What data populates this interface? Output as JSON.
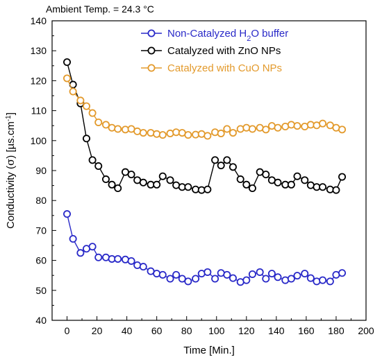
{
  "annotation": "Ambient Temp. = 24.3 °C",
  "chart_data": {
    "type": "line",
    "xlabel": "Time [Min.]",
    "ylabel_parts": {
      "pre": "Conductivity (",
      "sym": "σ",
      "mid": ") [µs.cm",
      "sup": "-1",
      "post": "]"
    },
    "xlim": [
      -10,
      200
    ],
    "ylim": [
      40,
      140
    ],
    "xticks": [
      "0",
      "20",
      "40",
      "60",
      "80",
      "100",
      "120",
      "140",
      "160",
      "180",
      "200"
    ],
    "yticks": [
      "40",
      "50",
      "60",
      "70",
      "80",
      "90",
      "100",
      "110",
      "120",
      "130",
      "140"
    ],
    "legend_position": "top-right",
    "series": [
      {
        "name": "Non-Catalyzed H2O buffer",
        "legend": {
          "pre": "Non-Catalyzed H",
          "sub": "2",
          "post": "O buffer"
        },
        "color": "#2929c8",
        "x": [
          0,
          4,
          9,
          13,
          17,
          21,
          26,
          30,
          34,
          39,
          43,
          47,
          51,
          56,
          60,
          64,
          69,
          73,
          77,
          81,
          86,
          90,
          94,
          99,
          103,
          107,
          111,
          116,
          120,
          124,
          129,
          133,
          137,
          141,
          146,
          150,
          154,
          159,
          163,
          167,
          171,
          176,
          180,
          184
        ],
        "y": [
          75.5,
          67.2,
          62.5,
          63.9,
          64.6,
          61.0,
          61.0,
          60.5,
          60.5,
          60.3,
          59.8,
          58.4,
          57.9,
          56.4,
          55.6,
          55.2,
          53.9,
          55.2,
          53.9,
          53.0,
          53.9,
          55.6,
          56.1,
          53.9,
          55.8,
          55.2,
          54.1,
          52.8,
          53.4,
          55.4,
          56.1,
          53.9,
          55.6,
          54.4,
          53.4,
          53.9,
          54.9,
          55.6,
          54.1,
          53.0,
          53.4,
          53.0,
          55.2,
          55.8
        ]
      },
      {
        "name": "Catalyzed with ZnO NPs",
        "color": "#000000",
        "x": [
          0,
          4,
          9,
          13,
          17,
          21,
          26,
          30,
          34,
          39,
          43,
          47,
          51,
          56,
          60,
          64,
          69,
          73,
          77,
          81,
          86,
          90,
          94,
          99,
          103,
          107,
          111,
          116,
          120,
          124,
          129,
          133,
          137,
          141,
          146,
          150,
          154,
          159,
          163,
          167,
          171,
          176,
          180,
          184
        ],
        "y": [
          126.2,
          118.7,
          112.4,
          100.7,
          93.5,
          91.5,
          87.1,
          85.3,
          84.1,
          89.5,
          88.7,
          86.8,
          86.0,
          85.3,
          85.3,
          88.1,
          86.8,
          85.1,
          84.5,
          84.5,
          83.7,
          83.5,
          83.7,
          93.5,
          91.7,
          93.5,
          91.2,
          87.1,
          85.3,
          84.1,
          89.5,
          88.7,
          86.8,
          86.0,
          85.3,
          85.3,
          88.1,
          86.8,
          85.1,
          84.5,
          84.5,
          83.7,
          83.5,
          87.9
        ]
      },
      {
        "name": "Catalyzed with CuO NPs",
        "color": "#e39a2c",
        "x": [
          0,
          4,
          9,
          13,
          17,
          21,
          26,
          30,
          34,
          39,
          43,
          47,
          51,
          56,
          60,
          64,
          69,
          73,
          77,
          81,
          86,
          90,
          94,
          99,
          103,
          107,
          111,
          116,
          120,
          124,
          129,
          133,
          137,
          141,
          146,
          150,
          154,
          159,
          163,
          167,
          171,
          176,
          180,
          184
        ],
        "y": [
          120.8,
          116.4,
          113.4,
          111.5,
          109.2,
          106.1,
          105.3,
          104.3,
          103.9,
          103.7,
          103.9,
          103.1,
          102.6,
          102.6,
          102.2,
          101.9,
          102.4,
          102.8,
          102.6,
          101.9,
          102.0,
          102.2,
          101.6,
          102.8,
          102.4,
          103.9,
          102.6,
          103.9,
          104.3,
          103.9,
          104.3,
          103.7,
          104.9,
          104.3,
          104.7,
          105.3,
          104.9,
          104.7,
          105.3,
          105.1,
          105.7,
          105.1,
          104.3,
          103.7
        ]
      }
    ]
  }
}
